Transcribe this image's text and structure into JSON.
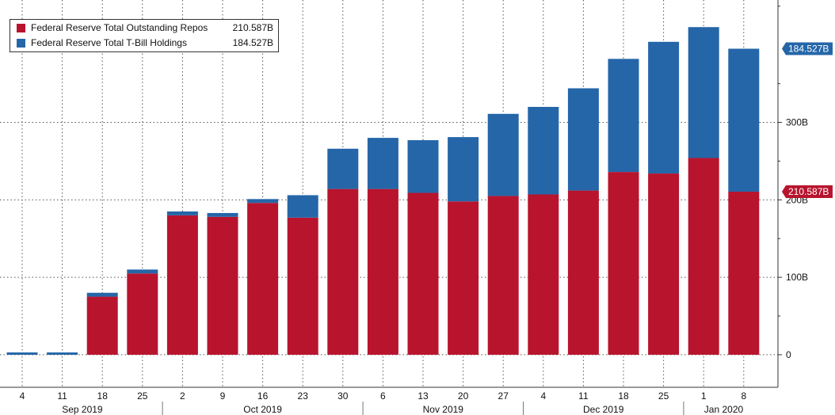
{
  "chart_data": {
    "type": "bar",
    "stacked": true,
    "categories": [
      "4",
      "11",
      "18",
      "25",
      "2",
      "9",
      "16",
      "23",
      "30",
      "6",
      "13",
      "20",
      "27",
      "4",
      "11",
      "18",
      "25",
      "1",
      "8"
    ],
    "month_labels": [
      {
        "label": "Sep 2019",
        "span": [
          0,
          3
        ]
      },
      {
        "label": "Oct 2019",
        "span": [
          4,
          8
        ]
      },
      {
        "label": "Nov 2019",
        "span": [
          9,
          12
        ]
      },
      {
        "label": "Dec 2019",
        "span": [
          13,
          16
        ]
      },
      {
        "label": "Jan 2020",
        "span": [
          17,
          18
        ]
      }
    ],
    "series": [
      {
        "name": "Federal Reserve Total Outstanding Repos",
        "value_label": "210.587B",
        "color": "#B8142E",
        "values": [
          0,
          0,
          75,
          105,
          180,
          178,
          196,
          177,
          214,
          214,
          209,
          198,
          205,
          207,
          212,
          236,
          234,
          254,
          210.587
        ]
      },
      {
        "name": "Federal Reserve Total T-Bill Holdings",
        "value_label": "184.527B",
        "color": "#2566A8",
        "values": [
          3,
          3,
          5,
          5,
          5,
          5,
          5,
          29,
          52,
          66,
          68,
          83,
          106,
          113,
          132,
          146,
          170,
          169,
          184.527
        ]
      }
    ],
    "yticks": [
      {
        "value": 0,
        "label": "0"
      },
      {
        "value": 100,
        "label": "100B"
      },
      {
        "value": 200,
        "label": "200B"
      },
      {
        "value": 300,
        "label": "300B"
      }
    ],
    "ylim": [
      -42,
      458
    ],
    "grid": true,
    "legend_position": "top-left",
    "axis_side": "right"
  }
}
